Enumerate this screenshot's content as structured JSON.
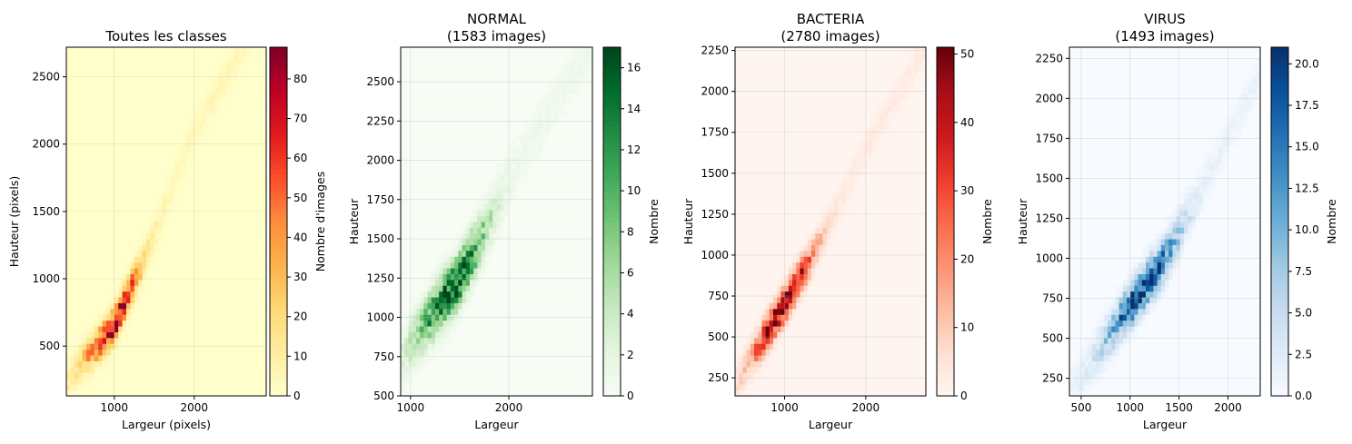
{
  "chart_data": [
    {
      "type": "heatmap",
      "title": [
        "Toutes les classes"
      ],
      "xlabel": "Largeur (pixels)",
      "ylabel": "Hauteur (pixels)",
      "colorbar_label": "Nombre d'images",
      "colormap": "YlOrRd",
      "colors": [
        "#ffffcc",
        "#ffeda0",
        "#fed976",
        "#feb24c",
        "#fd8d3c",
        "#fc4e2a",
        "#e31a1c",
        "#bd0026",
        "#800026"
      ],
      "xlim": [
        400,
        2900
      ],
      "ylim": [
        130,
        2720
      ],
      "xticks": [
        1000,
        2000
      ],
      "xtick_labels": [
        "1000",
        "2000"
      ],
      "yticks": [
        500,
        1000,
        1500,
        2000,
        2500
      ],
      "ytick_labels": [
        "500",
        "1000",
        "1500",
        "2000",
        "2500"
      ],
      "cbar_range": [
        0,
        88
      ],
      "cbar_ticks": [
        0,
        10,
        20,
        30,
        40,
        50,
        60,
        70,
        80
      ],
      "cbar_tick_labels": [
        "0",
        "10",
        "20",
        "30",
        "40",
        "50",
        "60",
        "70",
        "80"
      ],
      "grid": true,
      "density": {
        "center": [
          [
            500,
            300
          ],
          [
            1000,
            650
          ],
          [
            1500,
            1350
          ],
          [
            2000,
            2100
          ],
          [
            2500,
            2600
          ]
        ],
        "spread_width": 80,
        "peak_at": [
          1080,
          660
        ],
        "peak_count": 88
      }
    },
    {
      "type": "heatmap",
      "title": [
        "NORMAL",
        "(1583 images)"
      ],
      "xlabel": "Largeur",
      "ylabel": "Hauteur",
      "colorbar_label": "Nombre",
      "colormap": "Greens",
      "colors": [
        "#f7fcf5",
        "#e5f5e0",
        "#c7e9c0",
        "#a1d99b",
        "#74c476",
        "#41ab5d",
        "#238b45",
        "#006d2c",
        "#00441b"
      ],
      "xlim": [
        900,
        2850
      ],
      "ylim": [
        500,
        2720
      ],
      "xticks": [
        1000,
        2000
      ],
      "xtick_labels": [
        "1000",
        "2000"
      ],
      "yticks": [
        500,
        750,
        1000,
        1250,
        1500,
        1750,
        2000,
        2250,
        2500
      ],
      "ytick_labels": [
        "500",
        "750",
        "1000",
        "1250",
        "1500",
        "1750",
        "2000",
        "2250",
        "2500"
      ],
      "cbar_range": [
        0,
        17
      ],
      "cbar_ticks": [
        0,
        2,
        4,
        6,
        8,
        10,
        12,
        14,
        16
      ],
      "cbar_tick_labels": [
        "0",
        "2",
        "4",
        "6",
        "8",
        "10",
        "12",
        "14",
        "16"
      ],
      "grid": true,
      "density": {
        "center": [
          [
            1000,
            800
          ],
          [
            1500,
            1250
          ],
          [
            2000,
            1900
          ],
          [
            2500,
            2400
          ]
        ],
        "spread_width": 110,
        "peak_at": [
          1450,
          1200
        ],
        "peak_count": 17
      }
    },
    {
      "type": "heatmap",
      "title": [
        "BACTERIA",
        "(2780 images)"
      ],
      "xlabel": "Largeur",
      "ylabel": "Hauteur",
      "colorbar_label": "Nombre",
      "colormap": "Reds",
      "colors": [
        "#fff5f0",
        "#fee0d2",
        "#fcbba1",
        "#fc9272",
        "#fb6a4a",
        "#ef3b2c",
        "#cb181d",
        "#a50f15",
        "#67000d"
      ],
      "xlim": [
        390,
        2740
      ],
      "ylim": [
        140,
        2270
      ],
      "xticks": [
        1000,
        2000
      ],
      "xtick_labels": [
        "1000",
        "2000"
      ],
      "yticks": [
        250,
        500,
        750,
        1000,
        1250,
        1500,
        1750,
        2000,
        2250
      ],
      "ytick_labels": [
        "250",
        "500",
        "750",
        "1000",
        "1250",
        "1500",
        "1750",
        "2000",
        "2250"
      ],
      "cbar_range": [
        0,
        51
      ],
      "cbar_ticks": [
        0,
        10,
        20,
        30,
        40,
        50
      ],
      "cbar_tick_labels": [
        "0",
        "10",
        "20",
        "30",
        "40",
        "50"
      ],
      "grid": true,
      "density": {
        "center": [
          [
            450,
            250
          ],
          [
            1000,
            700
          ],
          [
            1500,
            1150
          ],
          [
            2000,
            1650
          ],
          [
            2600,
            2150
          ]
        ],
        "spread_width": 70,
        "peak_at": [
          1000,
          680
        ],
        "peak_count": 51
      }
    },
    {
      "type": "heatmap",
      "title": [
        "VIRUS",
        "(1493 images)"
      ],
      "xlabel": "Largeur",
      "ylabel": "Hauteur",
      "colorbar_label": "Nombre",
      "colormap": "Blues",
      "colors": [
        "#f7fbff",
        "#deebf7",
        "#c6dbef",
        "#9ecae1",
        "#6baed6",
        "#4292c6",
        "#2171b5",
        "#08519c",
        "#08306b"
      ],
      "xlim": [
        380,
        2330
      ],
      "ylim": [
        140,
        2320
      ],
      "xticks": [
        500,
        1000,
        1500,
        2000
      ],
      "xtick_labels": [
        "500",
        "1000",
        "1500",
        "2000"
      ],
      "yticks": [
        250,
        500,
        750,
        1000,
        1250,
        1500,
        1750,
        2000,
        2250
      ],
      "ytick_labels": [
        "250",
        "500",
        "750",
        "1000",
        "1250",
        "1500",
        "1750",
        "2000",
        "2250"
      ],
      "cbar_range": [
        0,
        21
      ],
      "cbar_ticks": [
        0,
        2.5,
        5,
        7.5,
        10,
        12.5,
        15,
        17.5,
        20
      ],
      "cbar_tick_labels": [
        "0.0",
        "2.5",
        "5.0",
        "7.5",
        "10.0",
        "12.5",
        "15.0",
        "17.5",
        "20.0"
      ],
      "grid": true,
      "density": {
        "center": [
          [
            450,
            200
          ],
          [
            1000,
            700
          ],
          [
            1300,
            950
          ],
          [
            1700,
            1400
          ],
          [
            2200,
            2000
          ]
        ],
        "spread_width": 85,
        "peak_at": [
          1150,
          800
        ],
        "peak_count": 21
      }
    }
  ]
}
